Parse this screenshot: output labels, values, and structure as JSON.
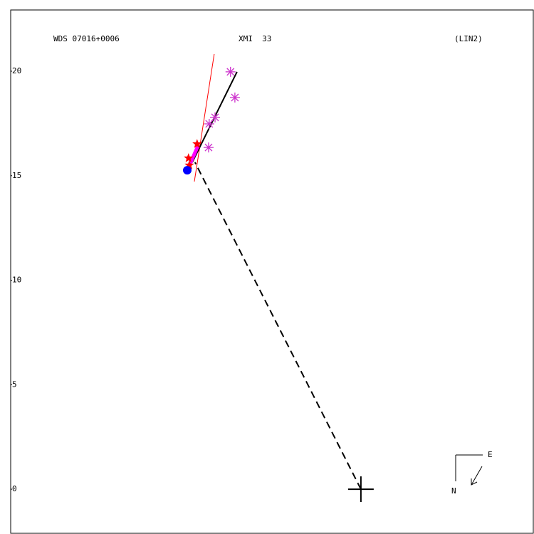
{
  "chart_data": {
    "type": "scatter",
    "title": "WDS 07016+0006",
    "subtitle": "XMI  33",
    "annotation": "(LIN2)",
    "compass": {
      "east": "E",
      "north": "N"
    },
    "xlim": [
      -16.76,
      8.25
    ],
    "ylim": [
      -2.11,
      22.93
    ],
    "yticks": [
      0,
      5,
      10,
      15,
      20
    ],
    "series": [
      {
        "style": "line",
        "color": "#ff0000",
        "width": 1,
        "x": [
          -7.02,
          -7.97
        ],
        "values": [
          20.82,
          14.72
        ]
      },
      {
        "style": "dashed",
        "color": "#000000",
        "width": 2,
        "x": [
          0,
          -7.94
        ],
        "values": [
          0,
          15.64
        ]
      },
      {
        "style": "line",
        "color": "#000000",
        "width": 2,
        "x": [
          -5.93,
          -8.07
        ],
        "values": [
          19.97,
          15.64
        ]
      },
      {
        "style": "line",
        "color": "#ff00ff",
        "width": 5,
        "x": [
          -8.25,
          -7.8
        ],
        "values": [
          15.4,
          16.42
        ]
      },
      {
        "style": "asterisk",
        "color": "#cc33cc",
        "x": [
          -6.24,
          -6.03,
          -6.98,
          -7.26,
          -7.29
        ],
        "values": [
          19.97,
          18.74,
          17.79,
          17.48,
          16.35
        ]
      },
      {
        "style": "star",
        "color": "#ff0000",
        "x": [
          -7.84,
          -8.25,
          -8.21
        ],
        "values": [
          16.52,
          15.84,
          15.5
        ]
      },
      {
        "style": "dot",
        "color": "#0000ff",
        "x": [
          -8.31
        ],
        "values": [
          15.26
        ]
      },
      {
        "style": "cross",
        "color": "#000000",
        "x": [
          0
        ],
        "values": [
          0
        ]
      }
    ]
  }
}
